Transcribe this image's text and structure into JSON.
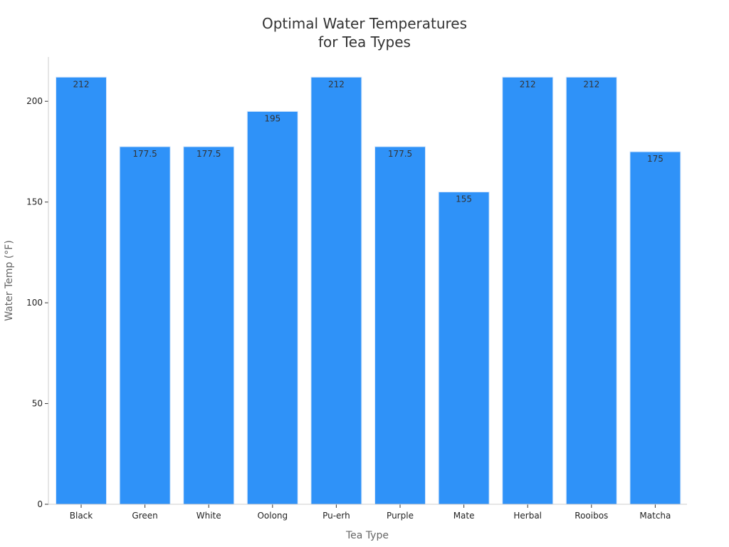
{
  "chart_data": {
    "type": "bar",
    "title_lines": [
      "Optimal Water Temperatures",
      "for Tea Types"
    ],
    "xlabel": "Tea Type",
    "ylabel": "Water Temp (°F)",
    "categories": [
      "Black",
      "Green",
      "White",
      "Oolong",
      "Pu-erh",
      "Purple",
      "Mate",
      "Herbal",
      "Rooibos",
      "Matcha"
    ],
    "values": [
      212,
      177.5,
      177.5,
      195,
      212,
      177.5,
      155,
      212,
      212,
      175
    ],
    "data_labels": [
      "212",
      "177.5",
      "177.5",
      "195",
      "212",
      "177.5",
      "155",
      "212",
      "212",
      "175"
    ],
    "ylim": [
      0,
      222
    ],
    "yticks": [
      0,
      50,
      100,
      150,
      200
    ],
    "grid": false,
    "legend": "none",
    "bar_color": "#2f92f8"
  }
}
